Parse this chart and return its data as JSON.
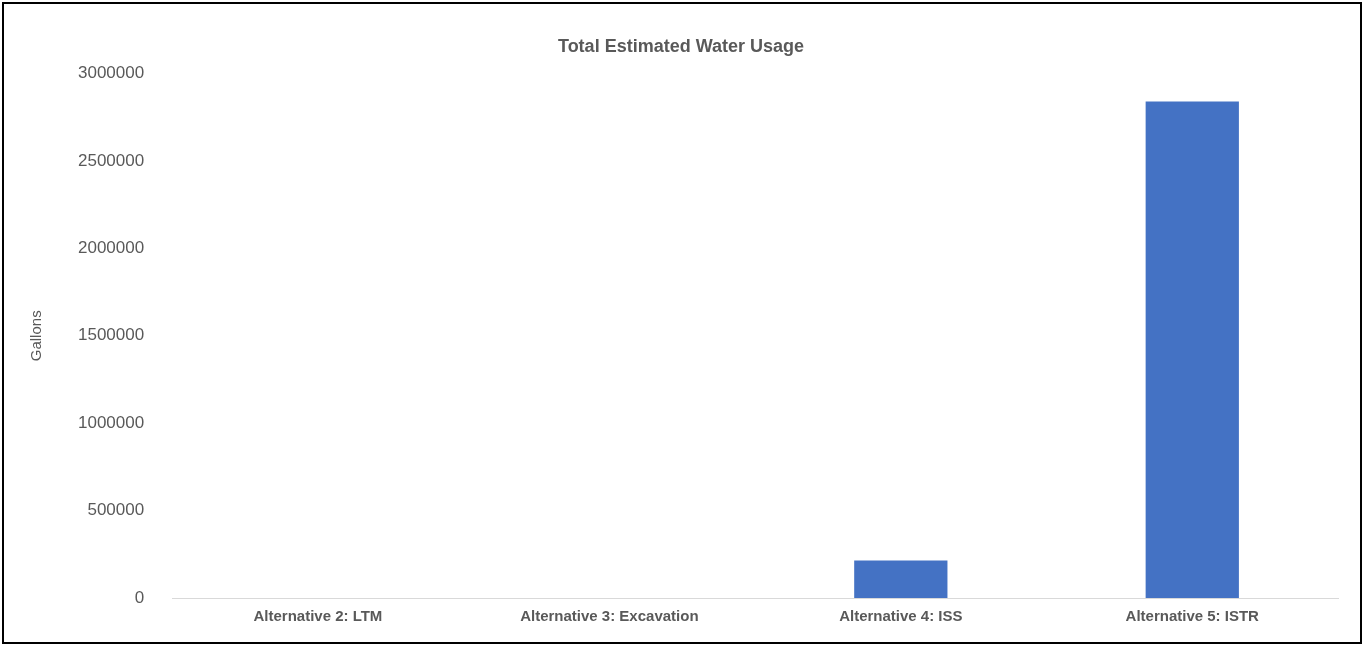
{
  "chart_data": {
    "type": "bar",
    "title": "Total Estimated Water Usage",
    "ylabel": "Gallons",
    "categories": [
      "Alternative 2: LTM",
      "Alternative 3: Excavation",
      "Alternative 4: ISS",
      "Alternative 5: ISTR"
    ],
    "values": [
      0,
      0,
      215000,
      2840000
    ],
    "color": "#4472c4",
    "ylim": [
      0,
      3000000
    ],
    "yticks": [
      0,
      500000,
      1000000,
      1500000,
      2000000,
      2500000,
      3000000
    ],
    "grid": false,
    "legend": false
  }
}
